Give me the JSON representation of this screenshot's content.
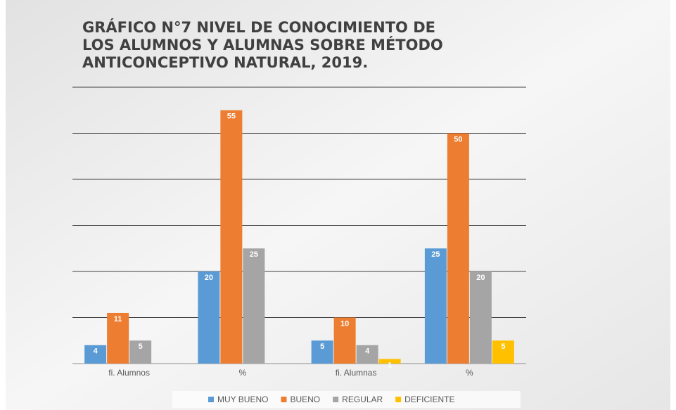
{
  "chart_data": {
    "type": "bar",
    "title": [
      "GRÁFICO N°7  NIVEL DE CONOCIMIENTO DE",
      "LOS ALUMNOS Y ALUMNAS SOBRE MÉTODO",
      "ANTICONCEPTIVO NATURAL, 2019."
    ],
    "categories": [
      "fi. Alumnos",
      "%",
      "fi. Alumnas",
      "%"
    ],
    "series": [
      {
        "name": "MUY BUENO",
        "color": "#5b9bd5",
        "values": [
          4,
          20,
          5,
          25
        ]
      },
      {
        "name": "BUENO",
        "color": "#ed7d31",
        "values": [
          11,
          55,
          10,
          50
        ]
      },
      {
        "name": "REGULAR",
        "color": "#a5a5a5",
        "values": [
          5,
          25,
          4,
          20
        ]
      },
      {
        "name": "DEFICIENTE",
        "color": "#ffc000",
        "values": [
          null,
          null,
          1,
          5
        ]
      }
    ],
    "ylim": [
      0,
      60
    ],
    "yticks": [
      0,
      10,
      20,
      30,
      40,
      50,
      60
    ],
    "grid": true,
    "legend": "bottom"
  }
}
